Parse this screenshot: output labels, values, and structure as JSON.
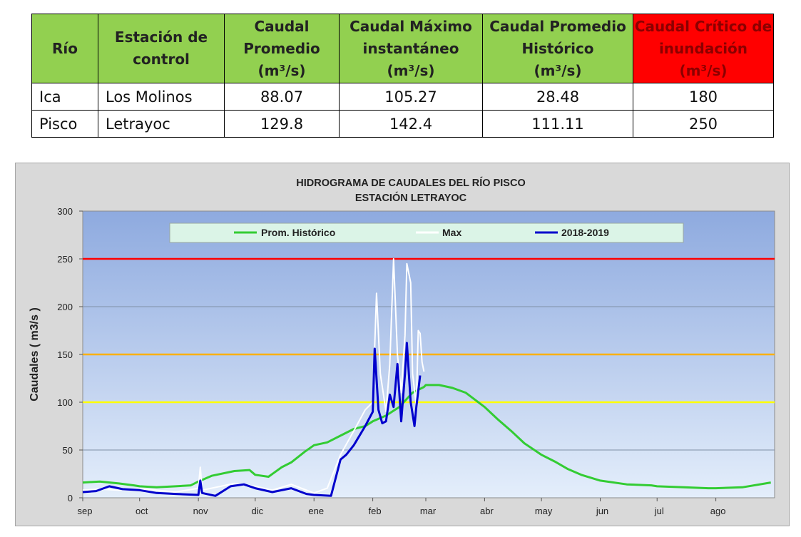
{
  "table": {
    "headers": [
      {
        "line1": "Río",
        "line2": "",
        "unit": ""
      },
      {
        "line1": "Estación de",
        "line2": "control",
        "unit": ""
      },
      {
        "line1": "Caudal",
        "line2": "Promedio",
        "unit": "(m³/s)"
      },
      {
        "line1": "Caudal Máximo",
        "line2": "instantáneo",
        "unit": "(m³/s)"
      },
      {
        "line1": "Caudal Promedio",
        "line2": "Histórico",
        "unit": "(m³/s)"
      },
      {
        "line1": "Caudal Crítico de",
        "line2": "inundación",
        "unit": "(m³/s)"
      }
    ],
    "rows": [
      [
        "Ica",
        "Los Molinos",
        "88.07",
        "105.27",
        "28.48",
        "180"
      ],
      [
        "Pisco",
        "Letrayoc",
        "129.8",
        "142.4",
        "111.11",
        "250"
      ]
    ],
    "colors": {
      "header_bg": "#92d050",
      "critical_bg": "#ff0000",
      "critical_text": "#8b0000"
    }
  },
  "chart_data": {
    "type": "line",
    "title": "HIDROGRAMA DE CAUDALES DEL RÍO PISCO",
    "subtitle": "ESTACIÓN LETRAYOC",
    "ylabel": "Caudales ( m3/s )",
    "xlabel": "",
    "ylim": [
      0,
      300
    ],
    "yticks": [
      0,
      50,
      100,
      150,
      200,
      250,
      300
    ],
    "month_labels": [
      "sep",
      "oct",
      "nov",
      "dic",
      "ene",
      "feb",
      "mar",
      "abr",
      "may",
      "jun",
      "jul",
      "ago"
    ],
    "grid": true,
    "legend_position": "top",
    "threshold_lines": [
      {
        "value": 250,
        "color": "#ff0000"
      },
      {
        "value": 150,
        "color": "#ffb000"
      },
      {
        "value": 100,
        "color": "#ffff00"
      }
    ],
    "series": [
      {
        "name": "Prom. Histórico",
        "color": "#33cc33",
        "x": [
          "sep",
          "sep",
          "sep",
          "sep",
          "oct",
          "oct",
          "oct",
          "oct",
          "nov",
          "nov",
          "nov",
          "nov",
          "dic",
          "dic",
          "dic",
          "dic",
          "dic",
          "ene",
          "ene",
          "ene",
          "ene",
          "ene",
          "feb",
          "feb",
          "feb",
          "feb",
          "feb",
          "mar",
          "mar",
          "mar",
          "mar",
          "abr",
          "abr",
          "abr",
          "abr",
          "may",
          "may",
          "may",
          "may",
          "jun",
          "jun",
          "jun",
          "jul",
          "jul",
          "jul",
          "ago",
          "ago",
          "ago"
        ],
        "day": [
          1,
          10,
          20,
          28,
          1,
          10,
          20,
          28,
          1,
          8,
          20,
          28,
          1,
          8,
          15,
          20,
          27,
          1,
          8,
          15,
          22,
          28,
          1,
          8,
          15,
          22,
          28,
          1,
          8,
          15,
          22,
          1,
          8,
          15,
          22,
          1,
          8,
          15,
          22,
          1,
          15,
          28,
          1,
          15,
          28,
          1,
          15,
          30
        ],
        "values": [
          16,
          17,
          15,
          13,
          12,
          11,
          12,
          13,
          17,
          23,
          28,
          29,
          24,
          22,
          32,
          37,
          48,
          55,
          58,
          65,
          72,
          75,
          80,
          86,
          95,
          110,
          116,
          118,
          118,
          115,
          110,
          95,
          82,
          70,
          57,
          45,
          38,
          30,
          24,
          18,
          14,
          13,
          12,
          11,
          10,
          10,
          11,
          16
        ]
      },
      {
        "name": "Max",
        "color": "#ffffff",
        "x": [
          "sep",
          "sep",
          "sep",
          "oct",
          "oct",
          "oct",
          "nov",
          "nov",
          "nov",
          "nov",
          "dic",
          "dic",
          "dic",
          "dic",
          "ene",
          "ene",
          "ene",
          "ene",
          "ene",
          "feb",
          "feb",
          "feb",
          "feb",
          "feb",
          "feb",
          "feb",
          "feb",
          "feb",
          "feb",
          "feb",
          "feb",
          "feb",
          "feb",
          "feb",
          "feb",
          "feb"
        ],
        "day": [
          1,
          10,
          20,
          1,
          10,
          20,
          1,
          2,
          3,
          20,
          1,
          10,
          20,
          28,
          1,
          8,
          15,
          22,
          28,
          1,
          3,
          5,
          8,
          10,
          12,
          14,
          16,
          18,
          19,
          21,
          22,
          24,
          25,
          26,
          27,
          28
        ],
        "values": [
          8,
          9,
          8,
          9,
          8,
          6,
          10,
          32,
          8,
          15,
          12,
          8,
          14,
          8,
          5,
          10,
          45,
          70,
          92,
          100,
          214,
          130,
          90,
          140,
          250,
          150,
          110,
          170,
          245,
          225,
          130,
          96,
          175,
          172,
          142,
          132
        ]
      },
      {
        "name": "2018-2019",
        "color": "#0000cc",
        "x": [
          "sep",
          "sep",
          "sep",
          "sep",
          "oct",
          "oct",
          "oct",
          "nov",
          "nov",
          "nov",
          "nov",
          "nov",
          "nov",
          "dic",
          "dic",
          "dic",
          "dic",
          "ene",
          "ene",
          "ene",
          "ene",
          "ene",
          "ene",
          "feb",
          "feb",
          "feb",
          "feb",
          "feb",
          "feb",
          "feb",
          "feb",
          "feb",
          "feb",
          "feb",
          "feb",
          "feb",
          "feb",
          "feb"
        ],
        "day": [
          1,
          8,
          15,
          22,
          1,
          10,
          20,
          1,
          2,
          3,
          10,
          18,
          25,
          1,
          10,
          20,
          28,
          1,
          10,
          15,
          18,
          22,
          28,
          1,
          2,
          4,
          6,
          8,
          10,
          12,
          14,
          16,
          18,
          19,
          21,
          23,
          24,
          26
        ],
        "values": [
          6,
          7,
          12,
          9,
          8,
          5,
          4,
          3,
          18,
          5,
          2,
          12,
          14,
          10,
          6,
          10,
          4,
          3,
          2,
          40,
          45,
          55,
          75,
          90,
          156,
          92,
          78,
          80,
          108,
          95,
          140,
          80,
          130,
          162,
          100,
          75,
          95,
          128
        ]
      }
    ]
  }
}
